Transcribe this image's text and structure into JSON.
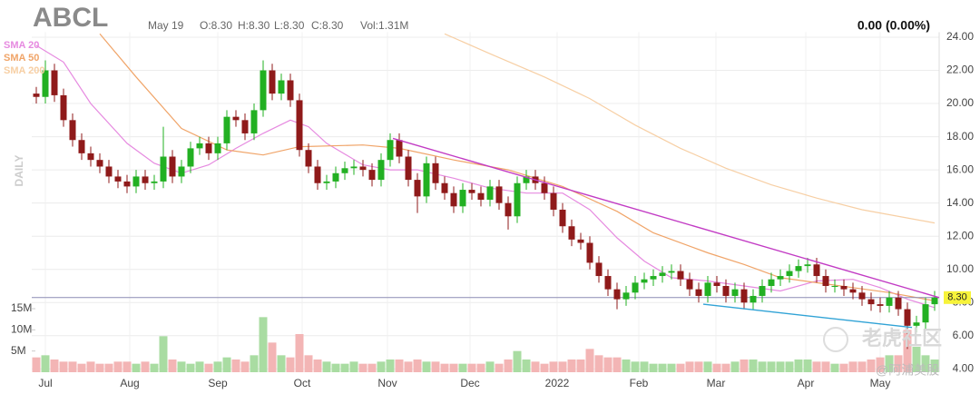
{
  "chart_data": {
    "type": "candlestick",
    "title": "ABCL",
    "info": [
      "May 19",
      "O:8.30",
      "H:8.30",
      "L:8.30",
      "C:8.30",
      "Vol:1.31M"
    ],
    "change": "0.00 (0.00%)",
    "period": "DAILY",
    "watermarks": [
      "老虎社区",
      "@阿浦美股"
    ],
    "xlim": [
      -0.5,
      99.5
    ],
    "xticks": [
      {
        "value": 1,
        "label": "Jul"
      },
      {
        "value": 10.3,
        "label": "Aug"
      },
      {
        "value": 20,
        "label": "Sep"
      },
      {
        "value": 29.3,
        "label": "Oct"
      },
      {
        "value": 38.7,
        "label": "Nov"
      },
      {
        "value": 47.8,
        "label": "Dec"
      },
      {
        "value": 57.4,
        "label": "2022"
      },
      {
        "value": 66.4,
        "label": "Feb"
      },
      {
        "value": 74.9,
        "label": "Mar"
      },
      {
        "value": 84.8,
        "label": "Apr"
      },
      {
        "value": 93,
        "label": "May"
      }
    ],
    "ylim": [
      3.8,
      24.3
    ],
    "yticks": [
      {
        "value": 4,
        "label": "4.00"
      },
      {
        "value": 6,
        "label": "6.00"
      },
      {
        "value": 8,
        "label": "8.00"
      },
      {
        "value": 10,
        "label": "10.00"
      },
      {
        "value": 12,
        "label": "12.00"
      },
      {
        "value": 14,
        "label": "14.00"
      },
      {
        "value": 16,
        "label": "16.00"
      },
      {
        "value": 18,
        "label": "18.00"
      },
      {
        "value": 20,
        "label": "20.00"
      },
      {
        "value": 22,
        "label": "22.00"
      },
      {
        "value": 24,
        "label": "24.00"
      }
    ],
    "volume_ylim": [
      0,
      16.5
    ],
    "volume_ticks": [
      {
        "value": 5,
        "label": "5M"
      },
      {
        "value": 10,
        "label": "10M"
      },
      {
        "value": 15,
        "label": "15M"
      }
    ],
    "grid": true,
    "up_color": "#22b022",
    "down_color": "#8f1a1a",
    "volume_up_color": "#a9dca2",
    "volume_down_color": "#f3b5b5",
    "last_price": {
      "value": 8.3,
      "label": "8.30",
      "color": "#f7f33a",
      "line_color": "#8c8cb4"
    },
    "open": [
      20.6,
      20.4,
      22.0,
      20.5,
      19.0,
      17.8,
      17.0,
      16.6,
      16.2,
      15.6,
      15.3,
      15.0,
      15.6,
      15.2,
      15.3,
      16.8,
      15.6,
      16.2,
      17.3,
      17.6,
      17.0,
      17.6,
      19.2,
      19.0,
      18.2,
      19.6,
      22.0,
      20.6,
      21.4,
      20.2,
      17.2,
      16.2,
      15.2,
      15.3,
      15.8,
      16.1,
      16.2,
      16.0,
      15.4,
      16.6,
      17.8,
      16.8,
      15.4,
      14.4,
      16.4,
      15.2,
      14.6,
      13.8,
      14.8,
      14.6,
      14.2,
      15.0,
      14.0,
      13.2,
      15.2,
      15.6,
      15.2,
      14.6,
      13.6,
      12.6,
      11.8,
      11.6,
      10.4,
      9.6,
      8.8,
      8.2,
      8.6,
      9.2,
      9.4,
      9.6,
      9.8,
      9.9,
      9.4,
      8.8,
      8.4,
      9.2,
      9.0,
      8.4,
      8.8,
      8.0,
      8.4,
      9.0,
      9.4,
      9.6,
      9.9,
      10.2,
      10.3,
      9.6,
      9.0,
      9.0,
      8.8,
      8.6,
      8.2,
      7.9,
      7.8,
      8.3,
      7.6,
      6.6,
      6.8,
      7.9
    ],
    "high": [
      21.0,
      22.6,
      22.4,
      20.9,
      19.4,
      18.2,
      17.4,
      17.0,
      16.6,
      16.0,
      15.7,
      16.0,
      16.0,
      15.7,
      18.6,
      17.2,
      16.6,
      17.7,
      18.0,
      18.0,
      18.0,
      19.6,
      19.6,
      19.4,
      20.0,
      22.6,
      22.4,
      21.8,
      21.8,
      20.6,
      17.6,
      16.6,
      15.7,
      16.2,
      16.5,
      16.6,
      16.6,
      16.4,
      17.0,
      18.2,
      18.2,
      17.2,
      15.8,
      16.8,
      16.8,
      15.6,
      15.0,
      15.2,
      15.2,
      15.0,
      15.4,
      15.4,
      14.4,
      15.6,
      16.0,
      16.0,
      15.6,
      15.0,
      14.0,
      13.0,
      12.2,
      12.0,
      10.8,
      10.0,
      9.2,
      9.0,
      9.6,
      9.8,
      10.0,
      10.2,
      10.3,
      10.3,
      9.8,
      9.2,
      9.6,
      9.6,
      9.4,
      9.2,
      9.2,
      8.8,
      9.4,
      9.8,
      10.0,
      10.3,
      10.6,
      10.7,
      10.7,
      10.0,
      9.4,
      9.4,
      9.2,
      9.0,
      8.6,
      8.3,
      8.7,
      8.7,
      8.0,
      7.2,
      8.3,
      8.7
    ],
    "low": [
      20.0,
      20.0,
      20.1,
      18.6,
      17.4,
      16.6,
      16.2,
      15.8,
      15.2,
      14.9,
      14.6,
      14.6,
      14.8,
      14.8,
      14.9,
      15.2,
      15.2,
      15.8,
      16.9,
      16.6,
      16.6,
      17.2,
      18.6,
      17.8,
      17.8,
      19.2,
      20.2,
      20.2,
      19.8,
      16.8,
      15.8,
      14.8,
      14.8,
      14.9,
      15.4,
      15.7,
      15.6,
      15.0,
      15.0,
      16.2,
      16.4,
      15.0,
      13.4,
      14.0,
      14.8,
      14.2,
      13.4,
      13.4,
      14.2,
      13.8,
      13.8,
      13.6,
      12.4,
      12.8,
      14.8,
      14.8,
      14.2,
      13.2,
      12.2,
      11.4,
      11.2,
      10.0,
      9.2,
      8.4,
      7.6,
      7.8,
      8.2,
      8.8,
      9.0,
      9.2,
      9.4,
      9.0,
      8.4,
      8.0,
      8.0,
      8.6,
      8.0,
      8.0,
      7.6,
      7.6,
      8.0,
      8.6,
      9.0,
      9.2,
      9.5,
      9.8,
      9.2,
      8.6,
      8.6,
      8.4,
      8.2,
      7.8,
      7.5,
      7.4,
      7.4,
      7.2,
      5.2,
      6.2,
      6.4,
      7.5
    ],
    "close": [
      20.4,
      22.0,
      20.5,
      19.0,
      17.8,
      17.0,
      16.6,
      16.2,
      15.6,
      15.3,
      15.0,
      15.6,
      15.2,
      15.3,
      16.8,
      15.6,
      16.2,
      17.3,
      17.6,
      17.0,
      17.6,
      19.2,
      19.0,
      18.2,
      19.6,
      22.0,
      20.6,
      21.4,
      20.2,
      17.2,
      16.2,
      15.2,
      15.3,
      15.8,
      16.1,
      16.2,
      16.0,
      15.4,
      16.6,
      17.8,
      16.8,
      15.4,
      14.4,
      16.4,
      15.2,
      14.6,
      13.8,
      14.8,
      14.6,
      14.2,
      15.0,
      14.0,
      13.2,
      15.2,
      15.6,
      15.2,
      14.6,
      13.6,
      12.6,
      11.8,
      11.6,
      10.4,
      9.6,
      8.8,
      8.2,
      8.6,
      9.2,
      9.4,
      9.6,
      9.8,
      9.9,
      9.4,
      8.8,
      8.4,
      9.2,
      9.0,
      8.4,
      8.8,
      8.0,
      8.4,
      9.0,
      9.4,
      9.6,
      9.9,
      10.2,
      10.3,
      9.6,
      9.0,
      9.0,
      8.8,
      8.6,
      8.2,
      7.9,
      7.8,
      8.3,
      7.6,
      6.6,
      6.8,
      7.9,
      8.3
    ],
    "volume": [
      3.5,
      4,
      3,
      2.5,
      2.5,
      2,
      2.5,
      2,
      2,
      2.5,
      2.5,
      2,
      2.5,
      2,
      8.5,
      3,
      2.5,
      2,
      2.5,
      2,
      2.5,
      3.5,
      3,
      2.5,
      4,
      13,
      7,
      4,
      3.5,
      9,
      4,
      3,
      2.5,
      2,
      2,
      2.5,
      2,
      2,
      2.5,
      3,
      3,
      2.5,
      3,
      2.5,
      2.5,
      2,
      2,
      2,
      2,
      2,
      2.5,
      2,
      3,
      5,
      3,
      2.5,
      2,
      2.5,
      2.5,
      3,
      3,
      5.5,
      4,
      3.5,
      3.5,
      3,
      2.5,
      2.5,
      2,
      2,
      2,
      2,
      2.5,
      2.5,
      2.5,
      2,
      2,
      2.5,
      3,
      3,
      2.5,
      2.5,
      2.5,
      2.5,
      3,
      3,
      2.5,
      2.5,
      2,
      2,
      2.5,
      2.5,
      3,
      3.5,
      4,
      4,
      10,
      6,
      4,
      3
    ],
    "sma": [
      {
        "name": "SMA 20",
        "color": "#e68ae0",
        "x": [
          0,
          3,
          6,
          10,
          13,
          16,
          19,
          22,
          25,
          28,
          30,
          32,
          36,
          39,
          42,
          46,
          50,
          54,
          58,
          61,
          64,
          67,
          70,
          74,
          78,
          82,
          86,
          90,
          93,
          96,
          99
        ],
        "values": [
          23.5,
          22.5,
          20.0,
          17.6,
          16.4,
          15.8,
          16.3,
          17.3,
          18.2,
          19.0,
          18.6,
          17.6,
          16.3,
          16.0,
          16.0,
          15.5,
          14.9,
          14.6,
          14.6,
          13.6,
          11.9,
          10.5,
          9.5,
          9.3,
          9.0,
          8.7,
          9.3,
          9.4,
          8.9,
          8.2,
          7.7
        ]
      },
      {
        "name": "SMA 50",
        "color": "#f0a468",
        "x": [
          7,
          11,
          16,
          21,
          25,
          29,
          36,
          40,
          46,
          52,
          58,
          64,
          68,
          74,
          78,
          82,
          86,
          90,
          94,
          99
        ],
        "values": [
          24.2,
          21.6,
          18.5,
          17.2,
          16.9,
          17.4,
          17.5,
          17.3,
          16.6,
          16.0,
          15.0,
          13.5,
          12.2,
          11.0,
          10.3,
          9.5,
          9.2,
          8.9,
          8.6,
          8.1
        ]
      },
      {
        "name": "SMA 200",
        "color": "#f7cfa4",
        "x": [
          45,
          50,
          56,
          61,
          66,
          71,
          76,
          81,
          86,
          91,
          96,
          99
        ],
        "values": [
          24.2,
          23.0,
          21.6,
          20.3,
          18.7,
          17.3,
          16.1,
          15.1,
          14.3,
          13.6,
          13.1,
          12.8
        ]
      }
    ],
    "trendlines": [
      {
        "color": "#c23bc4",
        "x": [
          39.3,
          99.5
        ],
        "values": [
          17.9,
          8.3
        ]
      },
      {
        "color": "#31a3d6",
        "x": [
          73.5,
          96.5
        ],
        "values": [
          7.9,
          6.5
        ]
      }
    ]
  }
}
